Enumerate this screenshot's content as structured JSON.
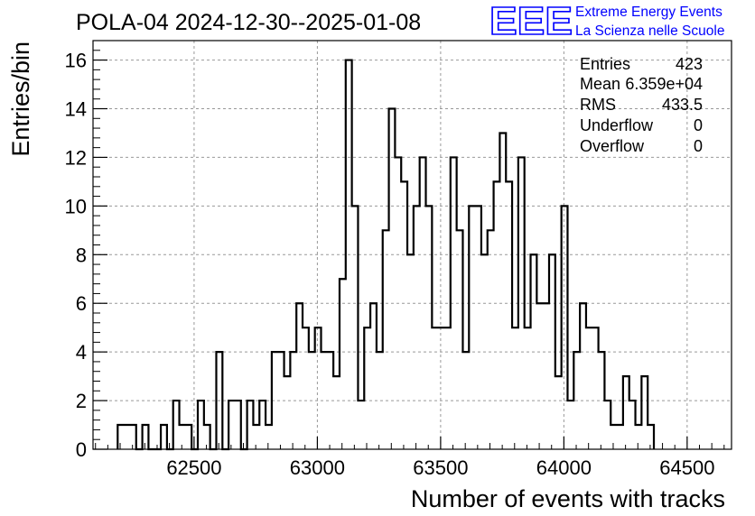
{
  "chart_data": {
    "type": "histogram",
    "title": "POLA-04 2024-12-30--2025-01-08",
    "xlabel": "Number of events with tracks",
    "ylabel": "Entries/bin",
    "xlim": [
      62090,
      64680
    ],
    "ylim": [
      0,
      16.8
    ],
    "x_ticks": [
      62500,
      63000,
      63500,
      64000,
      64500
    ],
    "x_tick_labels": [
      "62500",
      "63000",
      "63500",
      "64000",
      "64500"
    ],
    "y_ticks": [
      0,
      2,
      4,
      6,
      8,
      10,
      12,
      14,
      16
    ],
    "y_tick_labels": [
      "0",
      "2",
      "4",
      "6",
      "8",
      "10",
      "12",
      "14",
      "16"
    ],
    "grid": true,
    "bin_start": 62190,
    "bin_width": 25,
    "counts": [
      1,
      1,
      1,
      0,
      1,
      0,
      0,
      1,
      0,
      2,
      1,
      1,
      0,
      2,
      1,
      0,
      4,
      0,
      2,
      2,
      0,
      2,
      1,
      2,
      1,
      4,
      4,
      3,
      4,
      6,
      5,
      4,
      5,
      4,
      4,
      3,
      7,
      16,
      10,
      2,
      5,
      6,
      4,
      9,
      14,
      12,
      11,
      8,
      10,
      12,
      10,
      5,
      5,
      5,
      12,
      9,
      4,
      10,
      10,
      8,
      9,
      11,
      13,
      11,
      5,
      12,
      5,
      8,
      6,
      6,
      8,
      3,
      10,
      2,
      4,
      6,
      5,
      5,
      4,
      2,
      1,
      1,
      3,
      2,
      1,
      3,
      1
    ],
    "stats": {
      "entries_label": "Entries",
      "entries_value": "423",
      "mean_label": "Mean",
      "mean_value": "6.359e+04",
      "rms_label": "RMS",
      "rms_value": "433.5",
      "underflow_label": "Underflow",
      "underflow_value": "0",
      "overflow_label": "Overflow",
      "overflow_value": "0"
    }
  },
  "logo": {
    "text": "EEE",
    "line1": "Extreme Energy Events",
    "line2": "La Scienza nelle Scuole",
    "color": "#0000ff"
  },
  "colors": {
    "line": "#000000",
    "grid": "#999999",
    "background": "#ffffff"
  }
}
